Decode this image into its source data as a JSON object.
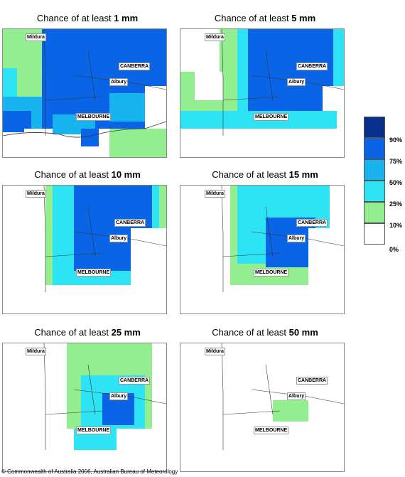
{
  "panels": [
    {
      "title_prefix": "Chance of at least ",
      "amount": "1 mm",
      "cities": [
        "Mildura",
        "CANBERRA",
        "Albury",
        "MELBOURNE"
      ]
    },
    {
      "title_prefix": "Chance of at least ",
      "amount": "5 mm",
      "cities": [
        "Mildura",
        "CANBERRA",
        "Albury",
        "MELBOURNE"
      ]
    },
    {
      "title_prefix": "Chance of at least ",
      "amount": "10 mm",
      "cities": [
        "Mildura",
        "CANBERRA",
        "Albury",
        "MELBOURNE"
      ]
    },
    {
      "title_prefix": "Chance of at least ",
      "amount": "15 mm",
      "cities": [
        "Mildura",
        "CANBERRA",
        "Albury",
        "MELBOURNE"
      ]
    },
    {
      "title_prefix": "Chance of at least ",
      "amount": "25 mm",
      "cities": [
        "Mildura",
        "CANBERRA",
        "Albury",
        "MELBOURNE"
      ]
    },
    {
      "title_prefix": "Chance of at least ",
      "amount": "50 mm",
      "cities": [
        "Mildura",
        "CANBERRA",
        "Albury",
        "MELBOURNE"
      ]
    }
  ],
  "legend": {
    "labels": [
      "90%",
      "75%",
      "50%",
      "25%",
      "10%",
      "0%"
    ],
    "colors": [
      "#08308c",
      "#0a64e6",
      "#17b4f0",
      "#2ee4f4",
      "#92ee8e",
      "#ffffff"
    ]
  },
  "copyright": "© Commonwealth of Australia 2006, Australian Bureau of Meteorology"
}
